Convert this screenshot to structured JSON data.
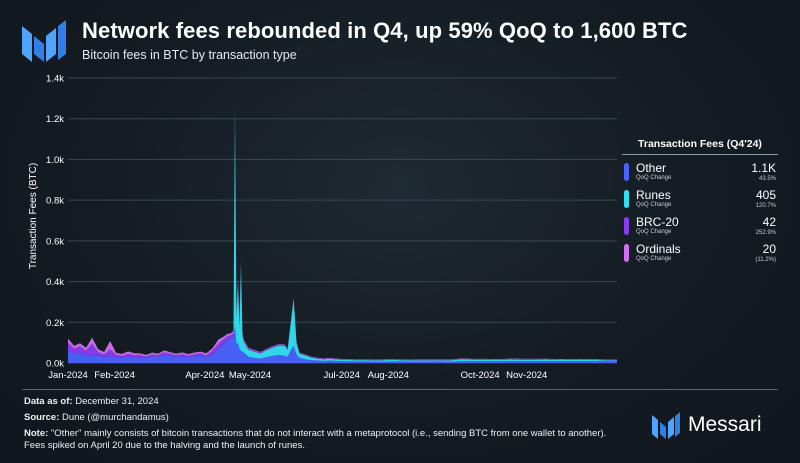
{
  "header": {
    "title": "Network fees rebounded in Q4, up 59% QoQ to 1,600 BTC",
    "subtitle": "Bitcoin fees in BTC by transaction type"
  },
  "colors": {
    "other": "#4a63ff",
    "runes": "#2fe0f2",
    "brc20": "#8a3cf2",
    "ordinals": "#d070f0",
    "grid": "#3a4650",
    "text": "#ffffff"
  },
  "icons": {
    "logo": "messari-logo-icon",
    "brand": "messari-mark-icon"
  },
  "chart_data": {
    "type": "area",
    "stacked": true,
    "title": "Network fees rebounded in Q4, up 59% QoQ to 1,600 BTC",
    "subtitle": "Bitcoin fees in BTC by transaction type",
    "xlabel": "",
    "ylabel": "Transaction Fees (BTC)",
    "ylim": [
      0,
      1400
    ],
    "yticks": [
      0,
      200,
      400,
      600,
      800,
      1000,
      1200,
      1400
    ],
    "ytick_labels": [
      "0.0k",
      "0.2k",
      "0.4k",
      "0.6k",
      "0.8k",
      "1.0k",
      "1.2k",
      "1.4k"
    ],
    "xlim_days": [
      0,
      365
    ],
    "xtick_days": [
      0,
      31,
      91,
      121,
      182,
      213,
      274,
      305
    ],
    "xtick_labels": [
      "Jan-2024",
      "Feb-2024",
      "Apr-2024",
      "May-2024",
      "Jul-2024",
      "Aug-2024",
      "Oct-2024",
      "Nov-2024"
    ],
    "grid": true,
    "legend_position": "right",
    "series": [
      {
        "name": "Other",
        "x_days": [
          0,
          4,
          8,
          12,
          16,
          20,
          24,
          28,
          32,
          36,
          40,
          44,
          48,
          52,
          56,
          60,
          64,
          68,
          72,
          76,
          80,
          84,
          88,
          92,
          96,
          100,
          104,
          106,
          108,
          110,
          111,
          112,
          113,
          114,
          115,
          116,
          117,
          118,
          120,
          124,
          128,
          132,
          136,
          140,
          144,
          146,
          148,
          150,
          152,
          154,
          158,
          162,
          166,
          170,
          174,
          178,
          182,
          190,
          198,
          206,
          214,
          222,
          230,
          238,
          246,
          254,
          262,
          270,
          278,
          286,
          294,
          302,
          310,
          318,
          326,
          334,
          342,
          350,
          358,
          365
        ],
        "values": [
          60,
          45,
          52,
          40,
          35,
          38,
          30,
          33,
          28,
          25,
          30,
          26,
          29,
          24,
          33,
          30,
          40,
          35,
          30,
          34,
          28,
          33,
          36,
          30,
          40,
          70,
          100,
          115,
          120,
          135,
          180,
          90,
          100,
          70,
          60,
          55,
          50,
          45,
          30,
          25,
          22,
          28,
          35,
          40,
          35,
          30,
          60,
          85,
          40,
          25,
          18,
          14,
          12,
          10,
          12,
          10,
          9,
          8,
          8,
          7,
          8,
          8,
          7,
          7,
          8,
          7,
          9,
          9,
          9,
          9,
          9,
          9,
          10,
          10,
          9,
          10,
          10,
          10,
          9,
          9
        ]
      },
      {
        "name": "Runes",
        "x_days": [
          0,
          110,
          111,
          112,
          113,
          114,
          115,
          116,
          117,
          118,
          120,
          124,
          128,
          132,
          136,
          140,
          144,
          146,
          148,
          150,
          152,
          154,
          158,
          162,
          166,
          170,
          174,
          178,
          182,
          190,
          198,
          206,
          214,
          222,
          230,
          238,
          246,
          254,
          262,
          270,
          278,
          286,
          294,
          302,
          310,
          318,
          326,
          334,
          342,
          350,
          358,
          365
        ],
        "values": [
          0,
          0,
          1070,
          140,
          300,
          110,
          430,
          80,
          50,
          45,
          35,
          30,
          25,
          35,
          40,
          45,
          50,
          35,
          130,
          230,
          55,
          20,
          18,
          12,
          9,
          8,
          9,
          8,
          7,
          6,
          6,
          6,
          7,
          6,
          6,
          6,
          5,
          6,
          10,
          7,
          7,
          6,
          8,
          7,
          6,
          7,
          6,
          5,
          5,
          5,
          4,
          4
        ]
      },
      {
        "name": "BRC-20",
        "x_days": [
          0,
          4,
          8,
          12,
          16,
          20,
          24,
          28,
          32,
          36,
          40,
          44,
          48,
          52,
          56,
          60,
          64,
          68,
          72,
          76,
          80,
          84,
          88,
          92,
          96,
          100,
          104,
          108,
          112,
          116,
          120,
          130,
          140,
          150,
          160,
          180,
          200,
          220,
          240,
          260,
          280,
          300,
          320,
          340,
          365
        ],
        "values": [
          40,
          25,
          30,
          20,
          60,
          15,
          12,
          35,
          12,
          10,
          15,
          12,
          10,
          8,
          10,
          8,
          12,
          10,
          8,
          10,
          8,
          10,
          12,
          8,
          20,
          25,
          20,
          15,
          10,
          8,
          5,
          4,
          4,
          3,
          3,
          2,
          2,
          2,
          2,
          2,
          2,
          3,
          2,
          3,
          2
        ]
      },
      {
        "name": "Ordinals",
        "x_days": [
          0,
          4,
          8,
          12,
          16,
          20,
          24,
          28,
          32,
          36,
          40,
          44,
          48,
          52,
          56,
          60,
          64,
          68,
          72,
          76,
          80,
          84,
          88,
          92,
          96,
          100,
          104,
          108,
          112,
          116,
          120,
          130,
          140,
          150,
          160,
          180,
          200,
          220,
          240,
          260,
          280,
          300,
          320,
          340,
          365
        ],
        "values": [
          20,
          15,
          15,
          15,
          30,
          15,
          12,
          40,
          10,
          10,
          12,
          10,
          8,
          8,
          8,
          8,
          10,
          8,
          8,
          8,
          8,
          8,
          8,
          10,
          12,
          20,
          12,
          10,
          8,
          6,
          4,
          3,
          3,
          3,
          2,
          2,
          2,
          2,
          2,
          2,
          2,
          2,
          2,
          2,
          2
        ]
      }
    ]
  },
  "legend": {
    "title": "Transaction Fees (Q4'24)",
    "items": [
      {
        "name": "Other",
        "sub": "QoQ Change",
        "value": "1.1K",
        "change": "43.5%",
        "color": "#4a63ff"
      },
      {
        "name": "Runes",
        "sub": "QoQ Change",
        "value": "405",
        "change": "120.7%",
        "color": "#2fe0f2"
      },
      {
        "name": "BRC-20",
        "sub": "QoQ Change",
        "value": "42",
        "change": "252.9%",
        "color": "#8a3cf2"
      },
      {
        "name": "Ordinals",
        "sub": "QoQ Change",
        "value": "20",
        "change": "(11.2%)",
        "color": "#d070f0"
      }
    ]
  },
  "footer": {
    "data_as_of_label": "Data as of:",
    "data_as_of_value": "December 31, 2024",
    "source_label": "Source:",
    "source_value": "Dune (@murchandamus)",
    "note_label": "Note:",
    "note_value": "\"Other\" mainly consists of bitcoin transactions that do not interact with a metaprotocol (i.e., sending BTC from one wallet to another). Fees spiked on April 20 due to the halving and the launch of runes.",
    "brand_name": "Messari"
  }
}
